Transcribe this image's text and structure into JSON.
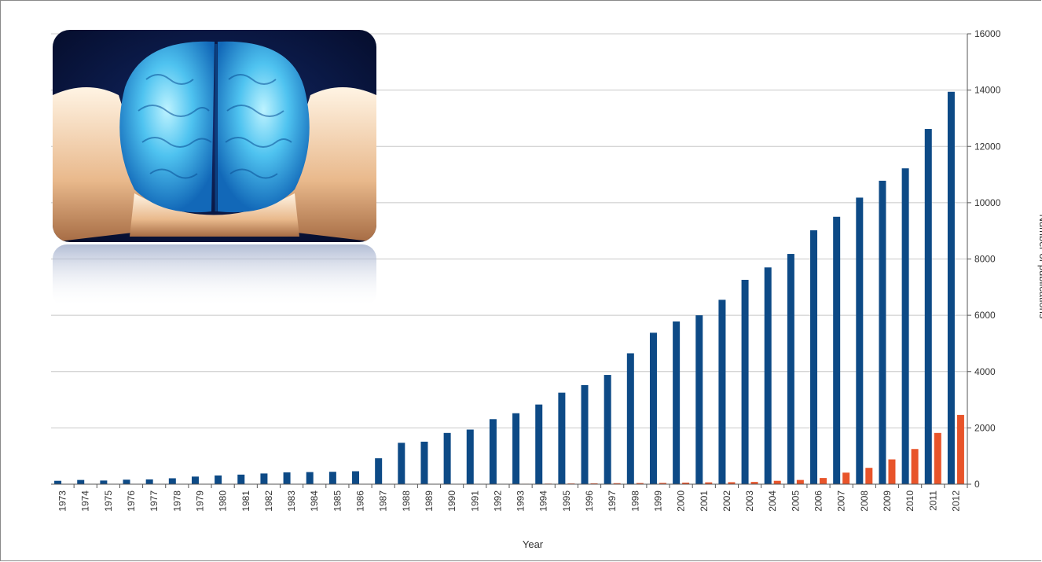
{
  "chart_data": {
    "type": "bar",
    "title": "",
    "xlabel": "Year",
    "ylabel": "Number of publications",
    "ylim": [
      0,
      16000
    ],
    "yticks": [
      0,
      2000,
      4000,
      6000,
      8000,
      10000,
      12000,
      14000,
      16000
    ],
    "y_axis_side": "right",
    "grid": true,
    "legend": "none",
    "categories": [
      "1973",
      "1974",
      "1975",
      "1976",
      "1977",
      "1978",
      "1979",
      "1980",
      "1981",
      "1982",
      "1983",
      "1984",
      "1985",
      "1986",
      "1987",
      "1988",
      "1989",
      "1990",
      "1991",
      "1992",
      "1993",
      "1994",
      "1995",
      "1996",
      "1997",
      "1998",
      "1999",
      "2000",
      "2001",
      "2002",
      "2003",
      "2004",
      "2005",
      "2006",
      "2007",
      "2008",
      "2009",
      "2010",
      "2011",
      "2012"
    ],
    "series": [
      {
        "color": "#0d4a86",
        "values": [
          120,
          150,
          130,
          160,
          170,
          210,
          270,
          310,
          340,
          380,
          420,
          430,
          440,
          460,
          920,
          1470,
          1510,
          1820,
          1940,
          2310,
          2520,
          2830,
          3250,
          3520,
          3880,
          4650,
          5380,
          5780,
          6000,
          6550,
          7260,
          7700,
          8180,
          9020,
          9500,
          10180,
          10780,
          11220,
          12620,
          13940
        ]
      },
      {
        "color": "#e8542a",
        "values": [
          0,
          0,
          0,
          0,
          0,
          0,
          0,
          0,
          0,
          0,
          0,
          0,
          0,
          0,
          0,
          5,
          5,
          8,
          10,
          12,
          15,
          20,
          25,
          30,
          35,
          40,
          45,
          55,
          65,
          70,
          80,
          120,
          150,
          220,
          410,
          580,
          880,
          1250,
          1820,
          2460
        ]
      }
    ]
  }
}
